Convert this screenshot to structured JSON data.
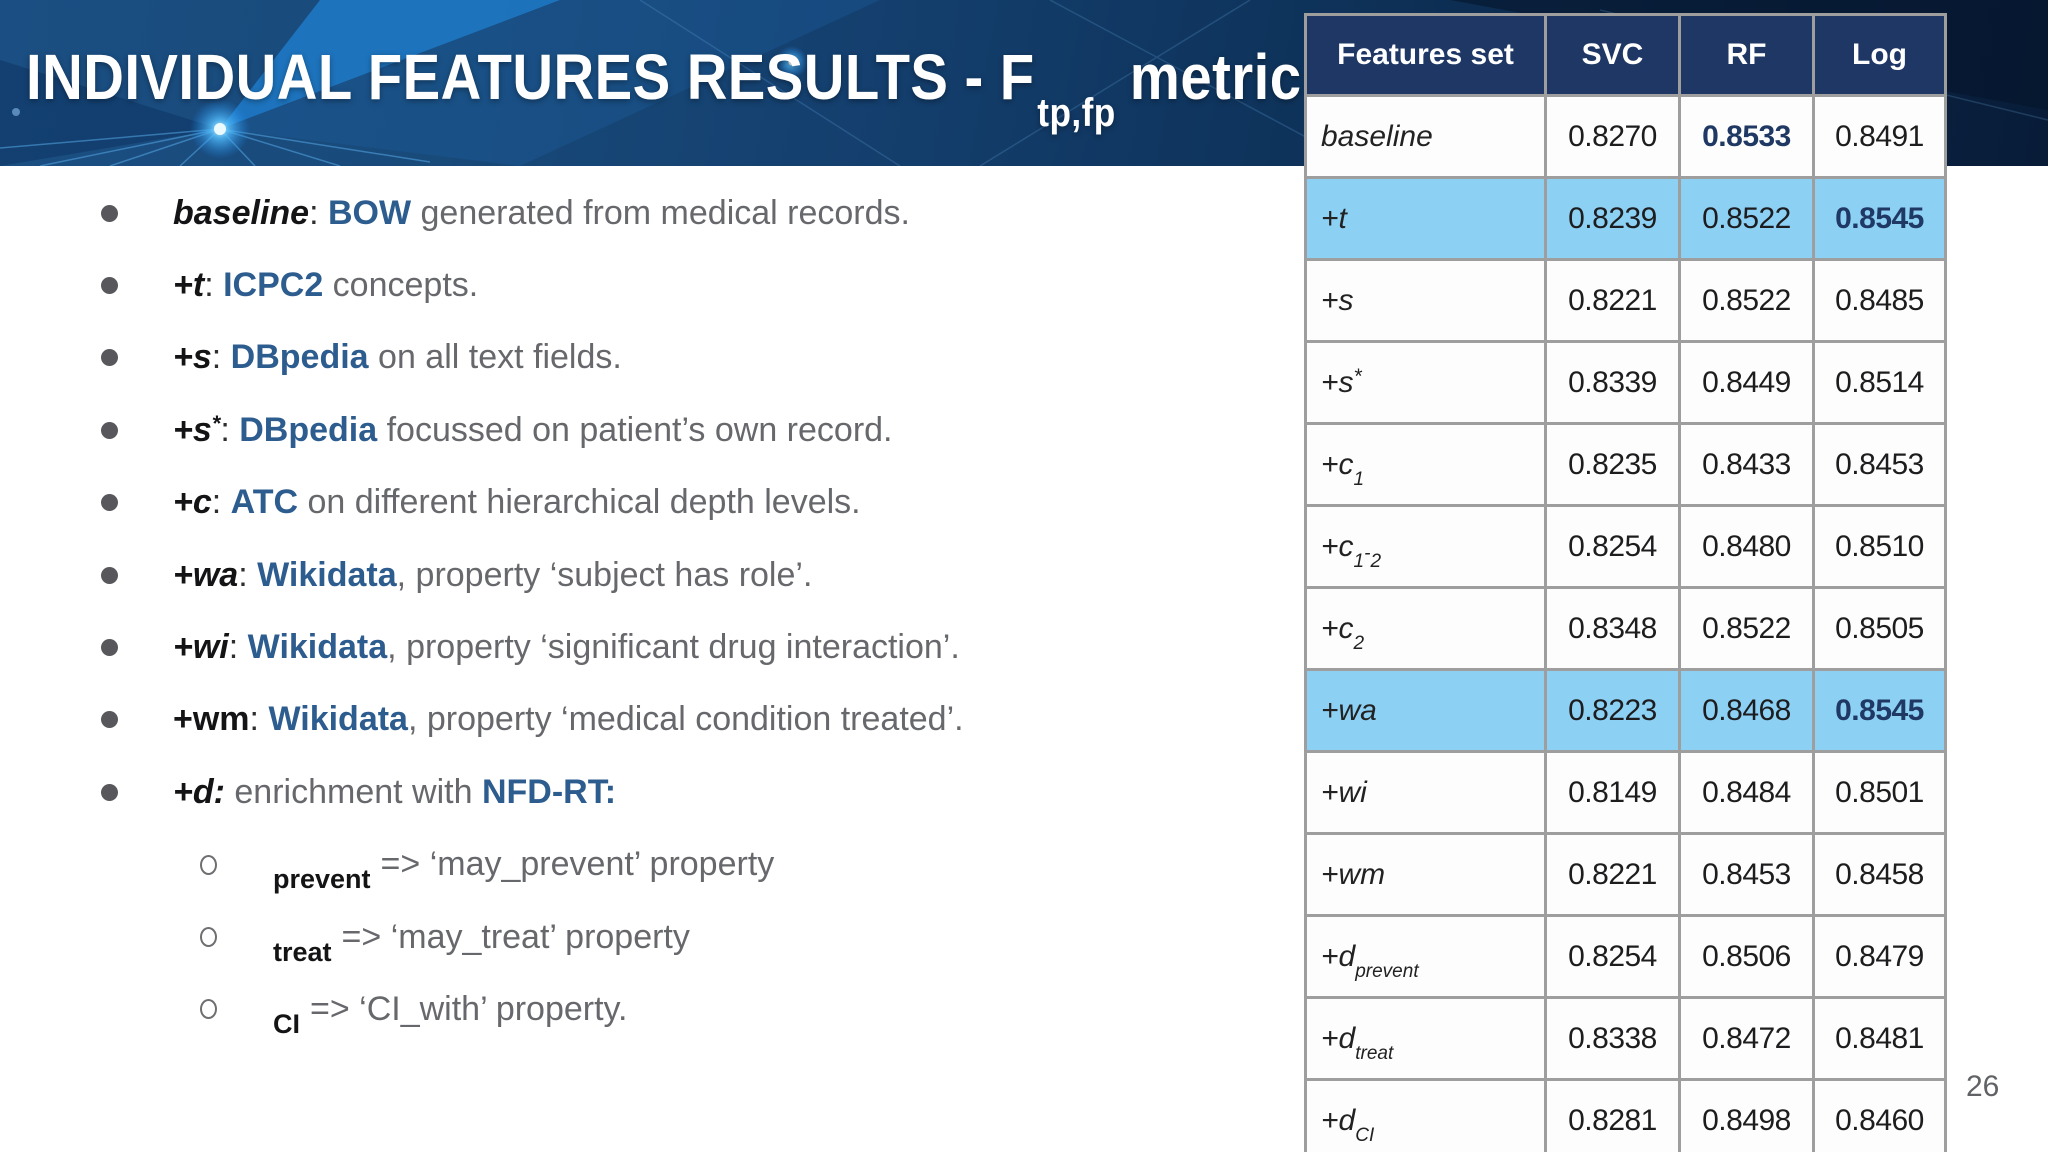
{
  "slide": {
    "title": {
      "main": "INDIVIDUAL FEATURES RESULTS - F",
      "subscript": "tp,fp",
      "suffix": "metric"
    },
    "page_number": "26",
    "colors": {
      "band_navy": "#12355e",
      "table_header_navy": "#1e3765",
      "highlight_blue": "#8cd0f4",
      "keyword_blue": "#2d5c8f",
      "bold_value_navy": "#1f3864",
      "body_gray": "#66686c"
    }
  },
  "bullets": [
    {
      "type": "main",
      "segments": [
        [
          "baseline",
          "term"
        ],
        [
          ": ",
          "colon"
        ],
        [
          "BOW",
          "kw"
        ],
        [
          " generated from medical records.",
          "body"
        ]
      ]
    },
    {
      "type": "main",
      "segments": [
        [
          "+t",
          "term"
        ],
        [
          ": ",
          "colon"
        ],
        [
          "ICPC2",
          "kw"
        ],
        [
          " concepts.",
          "body"
        ]
      ]
    },
    {
      "type": "main",
      "segments": [
        [
          "+s",
          "term"
        ],
        [
          ": ",
          "colon"
        ],
        [
          "DBpedia",
          "kw"
        ],
        [
          " on all text fields.",
          "body"
        ]
      ]
    },
    {
      "type": "main",
      "segments": [
        [
          "+s",
          "term"
        ],
        [
          "*",
          "termsup"
        ],
        [
          ": ",
          "colon"
        ],
        [
          "DBpedia",
          "kw"
        ],
        [
          " focussed on patient’s own record.",
          "body"
        ]
      ]
    },
    {
      "type": "main",
      "segments": [
        [
          "+c",
          "term"
        ],
        [
          ": ",
          "colon"
        ],
        [
          "ATC",
          "kw"
        ],
        [
          " on different hierarchical depth levels.",
          "body"
        ]
      ]
    },
    {
      "type": "main",
      "segments": [
        [
          "+wa",
          "term"
        ],
        [
          ": ",
          "colon"
        ],
        [
          "Wikidata",
          "kw"
        ],
        [
          ", property ‘subject has role’.",
          "body"
        ]
      ]
    },
    {
      "type": "main",
      "segments": [
        [
          "+wi",
          "term"
        ],
        [
          ": ",
          "colon"
        ],
        [
          "Wikidata",
          "kw"
        ],
        [
          ", property ‘significant drug interaction’.",
          "body"
        ]
      ]
    },
    {
      "type": "main",
      "segments": [
        [
          "+wm",
          "termu"
        ],
        [
          ": ",
          "colon"
        ],
        [
          "Wikidata",
          "kw"
        ],
        [
          ", property ‘medical condition treated’.",
          "body"
        ]
      ]
    },
    {
      "type": "main",
      "segments": [
        [
          "+d:",
          "term"
        ],
        [
          " enrichment with ",
          "body"
        ],
        [
          "NFD-RT:",
          "kw"
        ]
      ]
    },
    {
      "type": "sub",
      "segments": [
        [
          "prevent",
          "subword"
        ],
        [
          "=> ‘may_prevent’ property",
          "body"
        ]
      ]
    },
    {
      "type": "sub",
      "segments": [
        [
          "treat",
          "subword"
        ],
        [
          "=> ‘may_treat’ property",
          "body"
        ]
      ]
    },
    {
      "type": "sub",
      "segments": [
        [
          "CI",
          "subword"
        ],
        [
          "=> ‘CI_with’ property.",
          "body"
        ]
      ]
    }
  ],
  "table": {
    "columns": [
      "Features set",
      "SVC",
      "RF",
      "Log"
    ],
    "rows": [
      {
        "label": [
          [
            "baseline",
            "t"
          ]
        ],
        "highlight": false,
        "values": [
          {
            "v": "0.8270",
            "b": false
          },
          {
            "v": "0.8533",
            "b": true
          },
          {
            "v": "0.8491",
            "b": false
          }
        ]
      },
      {
        "label": [
          [
            "+t",
            "t"
          ]
        ],
        "highlight": true,
        "values": [
          {
            "v": "0.8239",
            "b": false
          },
          {
            "v": "0.8522",
            "b": false
          },
          {
            "v": "0.8545",
            "b": true
          }
        ]
      },
      {
        "label": [
          [
            "+s",
            "t"
          ]
        ],
        "highlight": false,
        "values": [
          {
            "v": "0.8221",
            "b": false
          },
          {
            "v": "0.8522",
            "b": false
          },
          {
            "v": "0.8485",
            "b": false
          }
        ]
      },
      {
        "label": [
          [
            "+s",
            "t"
          ],
          [
            "*",
            "sup"
          ]
        ],
        "highlight": false,
        "values": [
          {
            "v": "0.8339",
            "b": false
          },
          {
            "v": "0.8449",
            "b": false
          },
          {
            "v": "0.8514",
            "b": false
          }
        ]
      },
      {
        "label": [
          [
            "+c",
            "t"
          ],
          [
            "1",
            "sub"
          ]
        ],
        "highlight": false,
        "values": [
          {
            "v": "0.8235",
            "b": false
          },
          {
            "v": "0.8433",
            "b": false
          },
          {
            "v": "0.8453",
            "b": false
          }
        ]
      },
      {
        "label": [
          [
            "+c",
            "t"
          ],
          [
            "1",
            "sub"
          ],
          [
            "-",
            "dash"
          ],
          [
            "2",
            "sub"
          ]
        ],
        "highlight": false,
        "values": [
          {
            "v": "0.8254",
            "b": false
          },
          {
            "v": "0.8480",
            "b": false
          },
          {
            "v": "0.8510",
            "b": false
          }
        ]
      },
      {
        "label": [
          [
            "+c",
            "t"
          ],
          [
            "2",
            "sub"
          ]
        ],
        "highlight": false,
        "values": [
          {
            "v": "0.8348",
            "b": false
          },
          {
            "v": "0.8522",
            "b": false
          },
          {
            "v": "0.8505",
            "b": false
          }
        ]
      },
      {
        "label": [
          [
            "+wa",
            "t"
          ]
        ],
        "highlight": true,
        "values": [
          {
            "v": "0.8223",
            "b": false
          },
          {
            "v": "0.8468",
            "b": false
          },
          {
            "v": "0.8545",
            "b": true
          }
        ]
      },
      {
        "label": [
          [
            "+wi",
            "t"
          ]
        ],
        "highlight": false,
        "values": [
          {
            "v": "0.8149",
            "b": false
          },
          {
            "v": "0.8484",
            "b": false
          },
          {
            "v": "0.8501",
            "b": false
          }
        ]
      },
      {
        "label": [
          [
            "+wm",
            "t"
          ]
        ],
        "highlight": false,
        "values": [
          {
            "v": "0.8221",
            "b": false
          },
          {
            "v": "0.8453",
            "b": false
          },
          {
            "v": "0.8458",
            "b": false
          }
        ]
      },
      {
        "label": [
          [
            "+d",
            "t"
          ],
          [
            "prevent",
            "sub"
          ]
        ],
        "highlight": false,
        "values": [
          {
            "v": "0.8254",
            "b": false
          },
          {
            "v": "0.8506",
            "b": false
          },
          {
            "v": "0.8479",
            "b": false
          }
        ]
      },
      {
        "label": [
          [
            "+d",
            "t"
          ],
          [
            "treat",
            "sub"
          ]
        ],
        "highlight": false,
        "values": [
          {
            "v": "0.8338",
            "b": false
          },
          {
            "v": "0.8472",
            "b": false
          },
          {
            "v": "0.8481",
            "b": false
          }
        ]
      },
      {
        "label": [
          [
            "+d",
            "t"
          ],
          [
            "CI",
            "sub"
          ]
        ],
        "highlight": false,
        "values": [
          {
            "v": "0.8281",
            "b": false
          },
          {
            "v": "0.8498",
            "b": false
          },
          {
            "v": "0.8460",
            "b": false
          }
        ]
      }
    ]
  }
}
